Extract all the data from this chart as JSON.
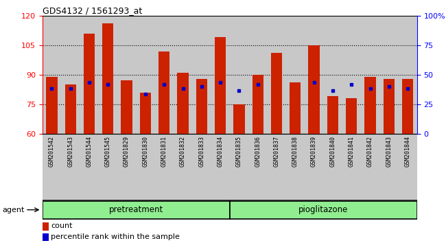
{
  "title": "GDS4132 / 1561293_at",
  "samples": [
    "GSM201542",
    "GSM201543",
    "GSM201544",
    "GSM201545",
    "GSM201829",
    "GSM201830",
    "GSM201831",
    "GSM201832",
    "GSM201833",
    "GSM201834",
    "GSM201835",
    "GSM201836",
    "GSM201837",
    "GSM201838",
    "GSM201839",
    "GSM201840",
    "GSM201841",
    "GSM201842",
    "GSM201843",
    "GSM201844"
  ],
  "bar_heights": [
    89,
    85,
    111,
    116,
    87,
    81,
    102,
    91,
    88,
    109,
    75,
    90,
    101,
    86,
    105,
    79,
    78,
    89,
    88,
    88
  ],
  "blue_dot_values": [
    83,
    83,
    86,
    85,
    null,
    80,
    85,
    83,
    84,
    86,
    82,
    85,
    null,
    null,
    86,
    82,
    85,
    83,
    84,
    83
  ],
  "bar_color": "#cc2200",
  "dot_color": "#0000cc",
  "ylim_left": [
    60,
    120
  ],
  "ylim_right": [
    0,
    100
  ],
  "yticks_left": [
    60,
    75,
    90,
    105,
    120
  ],
  "yticks_right": [
    0,
    25,
    50,
    75,
    100
  ],
  "ytick_labels_right": [
    "0",
    "25",
    "50",
    "75",
    "100%"
  ],
  "group1_label": "pretreatment",
  "group2_label": "pioglitazone",
  "group1_count": 10,
  "group2_count": 10,
  "agent_label": "agent",
  "legend_count_label": "count",
  "legend_pct_label": "percentile rank within the sample",
  "grid_yticks": [
    75,
    90,
    105
  ],
  "bar_width": 0.6,
  "group_bg": "#90ee90",
  "col_bg": "#c8c8c8",
  "bar_bottom": 60
}
